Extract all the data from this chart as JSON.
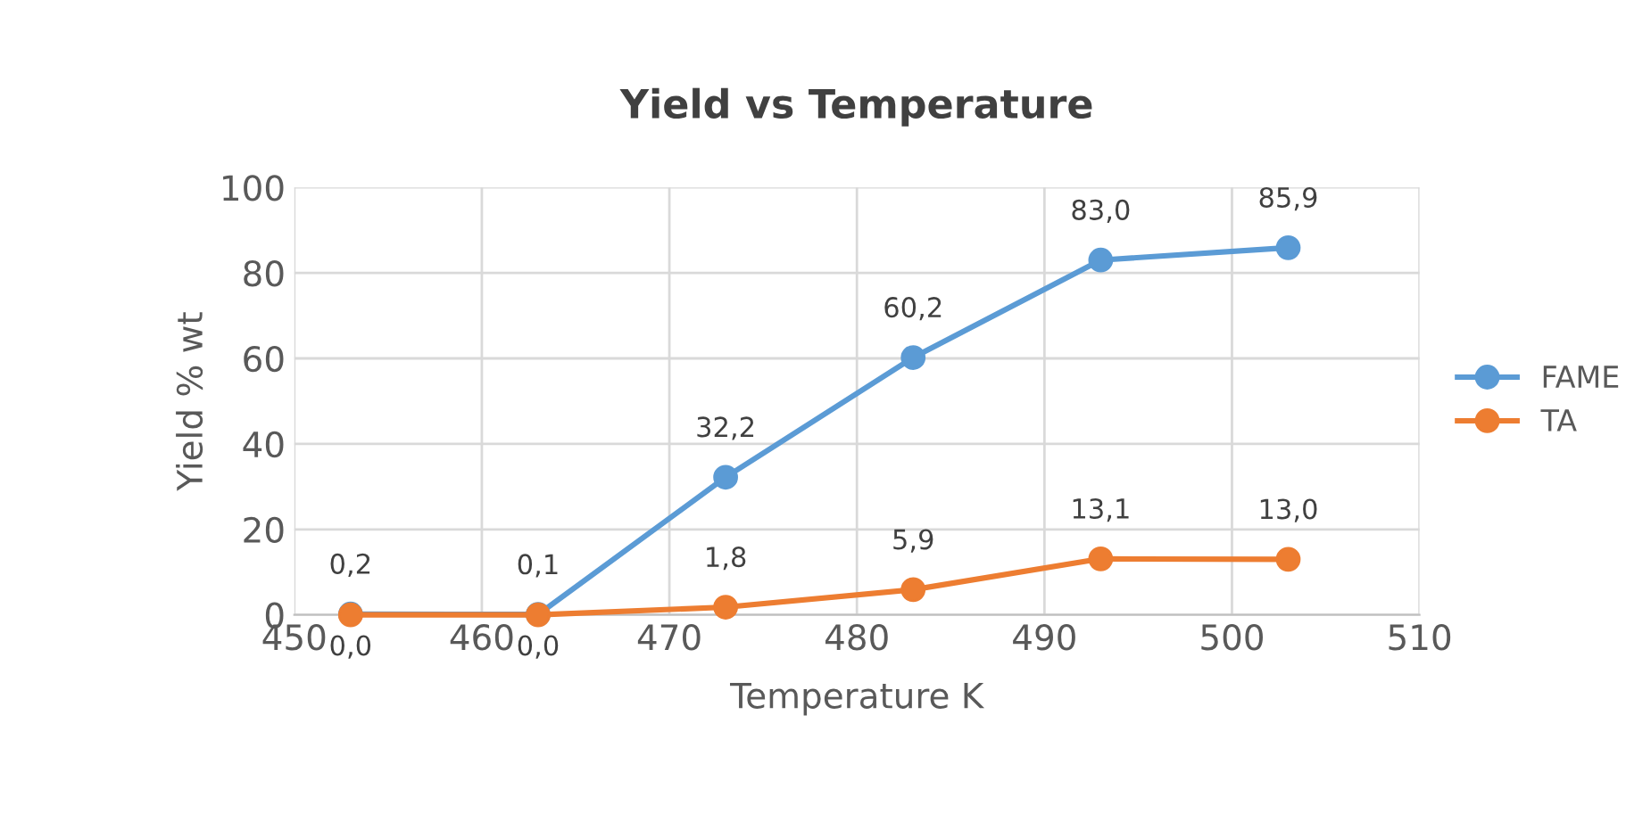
{
  "chart_data": {
    "type": "line",
    "title": "Yield vs Temperature",
    "xlabel": "Temperature K",
    "ylabel": "Yield % wt",
    "x": [
      453,
      463,
      473,
      483,
      493,
      503
    ],
    "series": [
      {
        "name": "FAME",
        "color": "#5b9bd5",
        "values": [
          0.2,
          0.1,
          32.2,
          60.2,
          83.0,
          85.9
        ],
        "value_labels": [
          "0,2",
          "0,1",
          "32,2",
          "60,2",
          "83,0",
          "85,9"
        ]
      },
      {
        "name": "TA",
        "color": "#ed7d31",
        "values": [
          0.0,
          0.0,
          1.8,
          5.9,
          13.1,
          13.0
        ],
        "value_labels": [
          "0,0",
          "0,0",
          "1,8",
          "5,9",
          "13,1",
          "13,0"
        ]
      }
    ],
    "xlim": [
      450,
      510
    ],
    "xticks": [
      450,
      460,
      470,
      480,
      490,
      500,
      510
    ],
    "ylim": [
      0,
      100
    ],
    "yticks": [
      0,
      20,
      40,
      60,
      80,
      100
    ],
    "grid": true,
    "legend": "right",
    "marker": "circle",
    "line_style": "solid"
  }
}
